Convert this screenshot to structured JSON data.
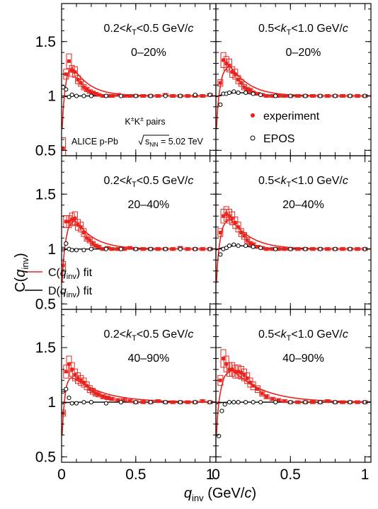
{
  "chart_data": {
    "type": "scatter",
    "title": "",
    "xlabel": {
      "base": "q",
      "sub": "inv",
      "unit_pre": " (GeV/",
      "unit_var": "c",
      "unit_post": ")"
    },
    "ylabel": {
      "pre": "C(",
      "var": "q",
      "sub": "inv",
      "post": ")"
    },
    "xlim": [
      0,
      1.04
    ],
    "ylim": [
      0.45,
      1.85
    ],
    "xticks": [
      "0",
      "0.5",
      "1"
    ],
    "yticks": [
      "0.5",
      "1",
      "1.5"
    ],
    "colors": {
      "experiment": "#e8231d",
      "epos": "#000000",
      "c_fit": "#e8231d",
      "d_fit": "#000000"
    },
    "annotations": {
      "pairs": {
        "k1": "K",
        "sup1": "±",
        "k2": "K",
        "sup2": "±",
        "tail": " pairs"
      },
      "alice": {
        "text": "ALICE p-Pb ",
        "s": "s",
        "sub": "NN",
        "tail": " = 5.02 TeV"
      }
    },
    "legend": {
      "experiment": "experiment",
      "epos": "EPOS",
      "c_fit": {
        "pre": "C(",
        "var": "q",
        "sub": "inv",
        "post": ") fit"
      },
      "d_fit": {
        "pre": "D(",
        "var": "q",
        "sub": "inv",
        "post": ") fit"
      }
    },
    "panels": [
      {
        "kt": {
          "lo": "0.2<",
          "k": "k",
          "sub": "T",
          "hi": "<0.5 GeV/",
          "c": "c"
        },
        "centrality": "0–20%",
        "series": [
          {
            "name": "experiment",
            "x": [
              0.01,
              0.03,
              0.05,
              0.07,
              0.09,
              0.11,
              0.13,
              0.15,
              0.17,
              0.19,
              0.21,
              0.23,
              0.25,
              0.28,
              0.31,
              0.34,
              0.38,
              0.42,
              0.46,
              0.5,
              0.55,
              0.6,
              0.65,
              0.7,
              0.75,
              0.8,
              0.85,
              0.9,
              0.95,
              1.0
            ],
            "y": [
              0.52,
              1.2,
              1.32,
              1.23,
              1.22,
              1.15,
              1.12,
              1.08,
              1.06,
              1.04,
              1.03,
              1.02,
              1.01,
              1.0,
              1.0,
              1.0,
              1.01,
              1.0,
              1.0,
              1.0,
              1.0,
              1.0,
              1.0,
              1.01,
              1.0,
              1.0,
              1.0,
              1.0,
              1.0,
              1.01
            ]
          },
          {
            "name": "EPOS",
            "x": [
              0.01,
              0.03,
              0.05,
              0.07,
              0.1,
              0.15,
              0.2,
              0.3,
              0.4,
              0.5,
              0.6,
              0.7,
              0.8,
              0.9,
              1.0
            ],
            "y": [
              1.08,
              1.06,
              0.99,
              1.01,
              1.0,
              1.0,
              1.0,
              1.0,
              1.0,
              1.0,
              1.0,
              1.0,
              1.0,
              1.01,
              1.01
            ]
          }
        ],
        "fitC": {
          "amp": 0.3,
          "peak": 0.07,
          "decay": 0.11,
          "rise": 0.035,
          "bias": 0.0
        },
        "fitD": {
          "amp": 0.0
        }
      },
      {
        "kt": {
          "lo": "0.5<",
          "k": "k",
          "sub": "T",
          "hi": "<1.0 GeV/",
          "c": "c"
        },
        "centrality": "0–20%",
        "series": [
          {
            "name": "experiment",
            "x": [
              0.03,
              0.05,
              0.07,
              0.09,
              0.11,
              0.13,
              0.15,
              0.17,
              0.19,
              0.21,
              0.23,
              0.25,
              0.28,
              0.31,
              0.34,
              0.38,
              0.42,
              0.46,
              0.5,
              0.55,
              0.6,
              0.65,
              0.7,
              0.75,
              0.8,
              0.85,
              0.9,
              0.95,
              1.0
            ],
            "y": [
              1.12,
              1.33,
              1.3,
              1.28,
              1.22,
              1.2,
              1.15,
              1.12,
              1.08,
              1.06,
              1.05,
              1.03,
              1.02,
              1.01,
              1.0,
              1.0,
              1.0,
              1.0,
              1.0,
              1.0,
              1.0,
              1.0,
              1.0,
              1.0,
              1.0,
              1.0,
              1.0,
              1.0,
              1.0
            ]
          },
          {
            "name": "EPOS",
            "x": [
              0.03,
              0.05,
              0.07,
              0.09,
              0.12,
              0.15,
              0.2,
              0.25,
              0.3,
              0.4,
              0.5,
              0.6,
              0.7,
              0.8,
              0.9,
              1.0
            ],
            "y": [
              0.92,
              1.02,
              1.02,
              1.03,
              1.04,
              1.03,
              1.03,
              1.02,
              1.01,
              1.0,
              1.0,
              1.0,
              1.0,
              1.0,
              1.0,
              1.0
            ]
          }
        ],
        "fitC": {
          "amp": 0.32,
          "peak": 0.09,
          "decay": 0.12,
          "rise": 0.045,
          "bias": 0.0
        },
        "fitD": {
          "amp": 0.03
        }
      },
      {
        "kt": {
          "lo": "0.2<",
          "k": "k",
          "sub": "T",
          "hi": "<0.5 GeV/",
          "c": "c"
        },
        "centrality": "20–40%",
        "series": [
          {
            "name": "experiment",
            "x": [
              0.01,
              0.03,
              0.05,
              0.07,
              0.09,
              0.11,
              0.13,
              0.15,
              0.17,
              0.19,
              0.21,
              0.23,
              0.25,
              0.28,
              0.31,
              0.34,
              0.38,
              0.42,
              0.46,
              0.5,
              0.55,
              0.6,
              0.65,
              0.7,
              0.75,
              0.8,
              0.85,
              0.9,
              0.95,
              1.0
            ],
            "y": [
              0.85,
              1.25,
              1.25,
              1.27,
              1.28,
              1.22,
              1.2,
              1.15,
              1.1,
              1.08,
              1.05,
              1.03,
              1.02,
              1.0,
              1.01,
              1.0,
              1.0,
              1.0,
              1.01,
              1.0,
              1.0,
              1.0,
              1.0,
              1.0,
              1.0,
              1.01,
              1.0,
              1.0,
              1.0,
              1.0
            ]
          },
          {
            "name": "EPOS",
            "x": [
              0.01,
              0.03,
              0.05,
              0.07,
              0.1,
              0.15,
              0.2,
              0.3,
              0.4,
              0.5,
              0.6,
              0.7,
              0.8,
              0.9,
              1.0
            ],
            "y": [
              1.0,
              1.05,
              1.0,
              0.99,
              0.99,
              0.99,
              1.0,
              1.0,
              1.0,
              1.0,
              1.0,
              1.0,
              1.0,
              1.0,
              1.0
            ]
          }
        ],
        "fitC": {
          "amp": 0.29,
          "peak": 0.09,
          "decay": 0.12,
          "rise": 0.04,
          "bias": 0.0
        },
        "fitD": {
          "amp": 0.0
        }
      },
      {
        "kt": {
          "lo": "0.5<",
          "k": "k",
          "sub": "T",
          "hi": "<1.0 GeV/",
          "c": "c"
        },
        "centrality": "20–40%",
        "series": [
          {
            "name": "experiment",
            "x": [
              0.03,
              0.05,
              0.07,
              0.09,
              0.11,
              0.13,
              0.15,
              0.17,
              0.19,
              0.21,
              0.23,
              0.25,
              0.28,
              0.31,
              0.34,
              0.38,
              0.42,
              0.46,
              0.5,
              0.55,
              0.6,
              0.65,
              0.7,
              0.75,
              0.8,
              0.85,
              0.9,
              0.95,
              1.0
            ],
            "y": [
              1.15,
              1.3,
              1.32,
              1.3,
              1.28,
              1.24,
              1.2,
              1.15,
              1.12,
              1.08,
              1.05,
              1.04,
              1.02,
              1.01,
              1.0,
              1.0,
              1.0,
              1.0,
              1.0,
              1.0,
              1.0,
              1.0,
              1.0,
              1.0,
              1.0,
              1.0,
              1.0,
              1.0,
              1.0
            ]
          },
          {
            "name": "EPOS",
            "x": [
              0.03,
              0.05,
              0.07,
              0.09,
              0.12,
              0.15,
              0.2,
              0.25,
              0.3,
              0.4,
              0.5,
              0.6,
              0.7,
              0.8,
              0.9,
              1.0
            ],
            "y": [
              0.95,
              1.0,
              1.01,
              1.03,
              1.04,
              1.03,
              1.03,
              1.02,
              1.01,
              1.0,
              1.0,
              1.0,
              1.0,
              1.0,
              1.0,
              1.0
            ]
          }
        ],
        "fitC": {
          "amp": 0.32,
          "peak": 0.09,
          "decay": 0.13,
          "rise": 0.045,
          "bias": 0.0
        },
        "fitD": {
          "amp": 0.03
        }
      },
      {
        "kt": {
          "lo": "0.2<",
          "k": "k",
          "sub": "T",
          "hi": "<0.5 GeV/",
          "c": "c"
        },
        "centrality": "40–90%",
        "series": [
          {
            "name": "experiment",
            "x": [
              0.01,
              0.03,
              0.05,
              0.07,
              0.09,
              0.11,
              0.13,
              0.15,
              0.17,
              0.19,
              0.21,
              0.23,
              0.25,
              0.28,
              0.31,
              0.34,
              0.38,
              0.42,
              0.46,
              0.5,
              0.55,
              0.6,
              0.65,
              0.7,
              0.75,
              0.8,
              0.85,
              0.9,
              0.95,
              1.0
            ],
            "y": [
              0.9,
              1.28,
              1.35,
              1.3,
              1.25,
              1.22,
              1.2,
              1.18,
              1.15,
              1.12,
              1.1,
              1.08,
              1.07,
              1.05,
              1.04,
              1.03,
              1.02,
              1.02,
              1.01,
              1.0,
              1.0,
              1.0,
              1.01,
              1.0,
              1.0,
              1.0,
              1.0,
              1.0,
              1.01,
              1.0
            ]
          },
          {
            "name": "EPOS",
            "x": [
              0.01,
              0.03,
              0.05,
              0.07,
              0.1,
              0.15,
              0.2,
              0.3,
              0.4,
              0.5,
              0.6,
              0.7,
              0.8,
              0.9,
              1.0
            ],
            "y": [
              1.1,
              1.12,
              1.04,
              0.99,
              0.99,
              1.0,
              1.0,
              0.99,
              1.0,
              1.0,
              1.0,
              1.0,
              1.0,
              1.0,
              1.0
            ]
          }
        ],
        "fitC": {
          "amp": 0.26,
          "peak": 0.06,
          "decay": 0.2,
          "rise": 0.03,
          "bias": 0.0
        },
        "fitD": {
          "amp": 0.0
        }
      },
      {
        "kt": {
          "lo": "0.5<",
          "k": "k",
          "sub": "T",
          "hi": "<1.0 GeV/",
          "c": "c"
        },
        "centrality": "40–90%",
        "series": [
          {
            "name": "experiment",
            "x": [
              0.03,
              0.05,
              0.07,
              0.09,
              0.11,
              0.13,
              0.15,
              0.17,
              0.19,
              0.21,
              0.23,
              0.25,
              0.28,
              0.31,
              0.34,
              0.38,
              0.42,
              0.46,
              0.5,
              0.55,
              0.6,
              0.65,
              0.7,
              0.75,
              0.8,
              0.85,
              0.9,
              0.95,
              1.0
            ],
            "y": [
              1.2,
              1.4,
              1.35,
              1.3,
              1.3,
              1.28,
              1.28,
              1.27,
              1.25,
              1.22,
              1.18,
              1.15,
              1.12,
              1.08,
              1.05,
              1.03,
              1.02,
              1.01,
              1.0,
              1.0,
              1.0,
              1.0,
              1.0,
              1.01,
              1.0,
              1.0,
              1.0,
              1.0,
              1.0
            ]
          },
          {
            "name": "EPOS",
            "x": [
              0.02,
              0.04,
              0.06,
              0.09,
              0.12,
              0.15,
              0.2,
              0.25,
              0.3,
              0.4,
              0.5,
              0.6,
              0.7,
              0.8,
              0.9,
              1.0
            ],
            "y": [
              0.69,
              0.92,
              0.98,
              1.0,
              1.0,
              1.0,
              1.0,
              1.0,
              1.0,
              1.0,
              1.0,
              1.0,
              1.0,
              1.0,
              1.0,
              1.0
            ]
          }
        ],
        "fitC": {
          "amp": 0.31,
          "peak": 0.11,
          "decay": 0.2,
          "rise": 0.04,
          "bias": 0.0
        },
        "fitD": {
          "amp": 0.0
        }
      }
    ]
  }
}
